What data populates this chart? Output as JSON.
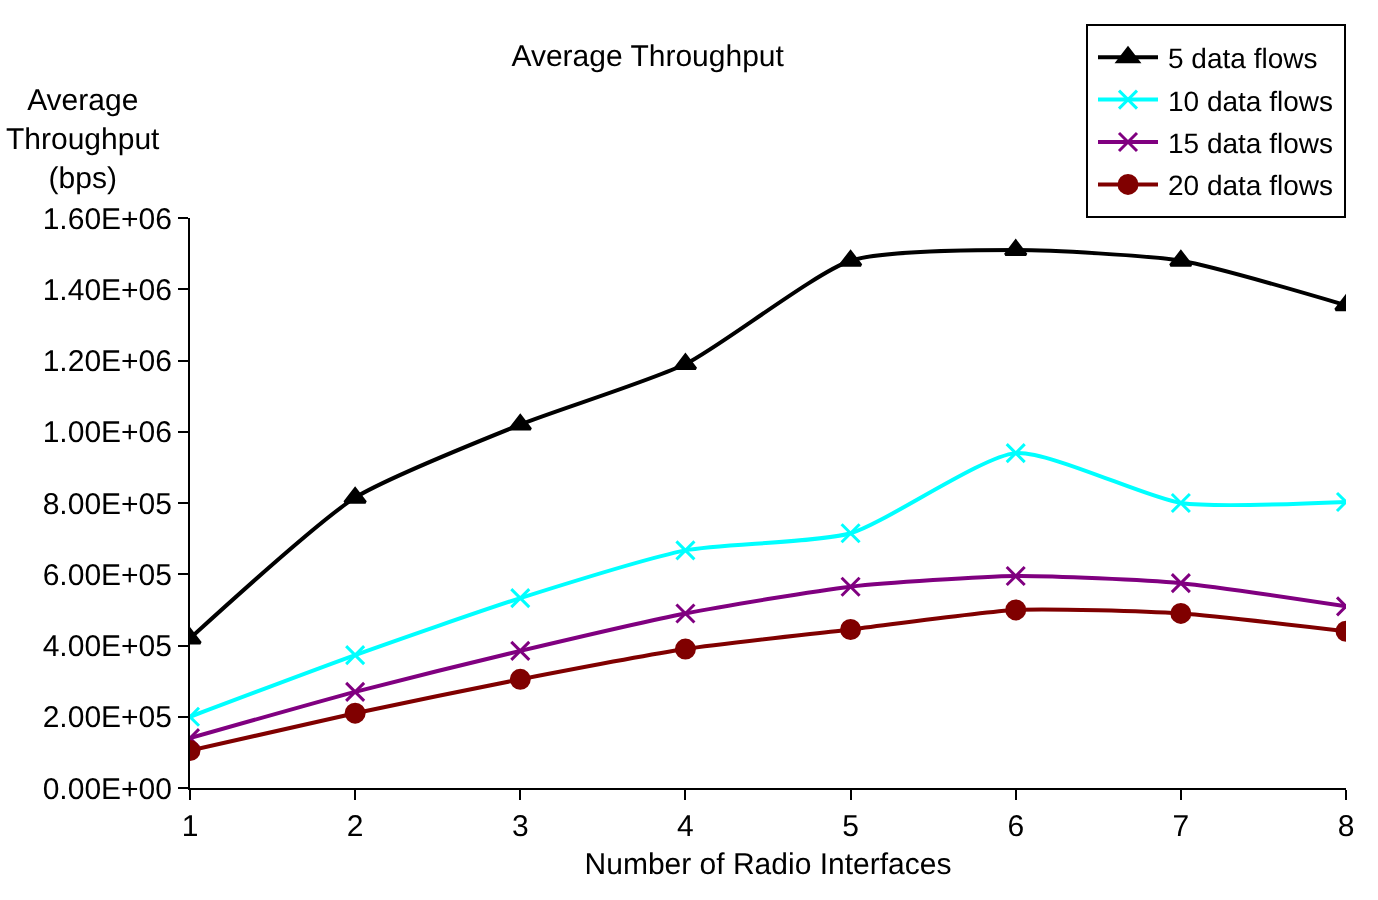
{
  "chart_data": {
    "type": "line",
    "title": "Average Throughput",
    "xlabel": "Number of Radio Interfaces",
    "ylabel": "Average\nThroughput\n(bps)",
    "x": [
      1,
      2,
      3,
      4,
      5,
      6,
      7,
      8
    ],
    "xlim": [
      1,
      8
    ],
    "xticks": [
      1,
      2,
      3,
      4,
      5,
      6,
      7,
      8
    ],
    "ylim": [
      0,
      1600000
    ],
    "yticks": [
      {
        "value": 0,
        "label": "0.00E+00"
      },
      {
        "value": 200000,
        "label": "2.00E+05"
      },
      {
        "value": 400000,
        "label": "4.00E+05"
      },
      {
        "value": 600000,
        "label": "6.00E+05"
      },
      {
        "value": 800000,
        "label": "8.00E+05"
      },
      {
        "value": 1000000,
        "label": "1.00E+06"
      },
      {
        "value": 1200000,
        "label": "1.20E+06"
      },
      {
        "value": 1400000,
        "label": "1.40E+06"
      },
      {
        "value": 1600000,
        "label": "1.60E+06"
      }
    ],
    "legend": "top right",
    "series": [
      {
        "name": "5 data flows",
        "color": "#000000",
        "marker": "triangle",
        "values": [
          420000,
          815000,
          1020000,
          1190000,
          1480000,
          1510000,
          1480000,
          1355000
        ]
      },
      {
        "name": "10 data flows",
        "color": "#00ffff",
        "marker": "cross",
        "values": [
          200000,
          373000,
          533000,
          667000,
          715000,
          940000,
          800000,
          803000
        ]
      },
      {
        "name": "15 data flows",
        "color": "#800080",
        "marker": "cross",
        "values": [
          140000,
          270000,
          385000,
          490000,
          565000,
          595000,
          575000,
          510000
        ]
      },
      {
        "name": "20 data flows",
        "color": "#800000",
        "marker": "circle",
        "values": [
          105000,
          210000,
          305000,
          390000,
          445000,
          500000,
          490000,
          440000
        ]
      }
    ]
  }
}
